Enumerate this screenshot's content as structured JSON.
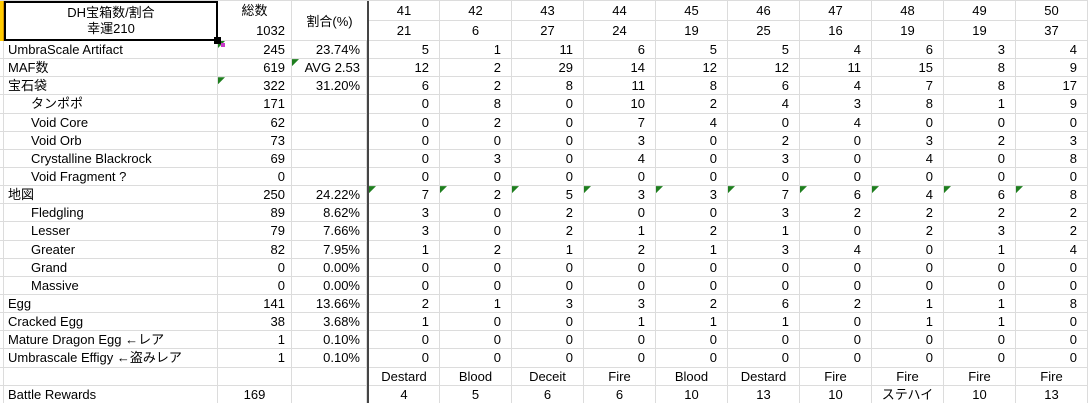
{
  "title": {
    "line1": "DH宝箱数/割合",
    "line2": "幸運210"
  },
  "columns": {
    "total_header": "総数",
    "total_value": "1032",
    "ratio_header": "割合(%)",
    "trial_numbers": [
      "41",
      "42",
      "43",
      "44",
      "45",
      "46",
      "47",
      "48",
      "49",
      "50"
    ],
    "trial_counts": [
      "21",
      "6",
      "27",
      "24",
      "19",
      "25",
      "16",
      "19",
      "19",
      "37"
    ]
  },
  "rows": [
    {
      "label": "UmbraScale Artifact",
      "indent": false,
      "total": "245",
      "ratio": "23.74%",
      "values": [
        "5",
        "1",
        "11",
        "6",
        "5",
        "5",
        "4",
        "6",
        "3",
        "4"
      ],
      "tri_total": true
    },
    {
      "label": "MAF数",
      "indent": false,
      "total": "619",
      "ratio": "AVG 2.53",
      "values": [
        "12",
        "2",
        "29",
        "14",
        "12",
        "12",
        "11",
        "15",
        "8",
        "9"
      ],
      "tri_ratio": true
    },
    {
      "label": "宝石袋",
      "indent": false,
      "total": "322",
      "ratio": "31.20%",
      "values": [
        "6",
        "2",
        "8",
        "11",
        "8",
        "6",
        "4",
        "7",
        "8",
        "17"
      ],
      "tri_total": true
    },
    {
      "label": "タンポポ",
      "indent": true,
      "total": "171",
      "ratio": "",
      "values": [
        "0",
        "8",
        "0",
        "10",
        "2",
        "4",
        "3",
        "8",
        "1",
        "9"
      ]
    },
    {
      "label": "Void Core",
      "indent": true,
      "total": "62",
      "ratio": "",
      "values": [
        "0",
        "2",
        "0",
        "7",
        "4",
        "0",
        "4",
        "0",
        "0",
        "0"
      ]
    },
    {
      "label": "Void Orb",
      "indent": true,
      "total": "73",
      "ratio": "",
      "values": [
        "0",
        "0",
        "0",
        "3",
        "0",
        "2",
        "0",
        "3",
        "2",
        "3"
      ]
    },
    {
      "label": "Crystalline Blackrock",
      "indent": true,
      "total": "69",
      "ratio": "",
      "values": [
        "0",
        "3",
        "0",
        "4",
        "0",
        "3",
        "0",
        "4",
        "0",
        "8"
      ]
    },
    {
      "label": "Void Fragment ?",
      "indent": true,
      "total": "0",
      "ratio": "",
      "values": [
        "0",
        "0",
        "0",
        "0",
        "0",
        "0",
        "0",
        "0",
        "0",
        "0"
      ]
    },
    {
      "label": "地図",
      "indent": false,
      "total": "250",
      "ratio": "24.22%",
      "values": [
        "7",
        "2",
        "5",
        "3",
        "3",
        "7",
        "6",
        "4",
        "6",
        "8"
      ],
      "tri_values": true
    },
    {
      "label": "Fledgling",
      "indent": true,
      "total": "89",
      "ratio": "8.62%",
      "values": [
        "3",
        "0",
        "2",
        "0",
        "0",
        "3",
        "2",
        "2",
        "2",
        "2"
      ]
    },
    {
      "label": "Lesser",
      "indent": true,
      "total": "79",
      "ratio": "7.66%",
      "values": [
        "3",
        "0",
        "2",
        "1",
        "2",
        "1",
        "0",
        "2",
        "3",
        "2"
      ]
    },
    {
      "label": "Greater",
      "indent": true,
      "total": "82",
      "ratio": "7.95%",
      "values": [
        "1",
        "2",
        "1",
        "2",
        "1",
        "3",
        "4",
        "0",
        "1",
        "4"
      ]
    },
    {
      "label": "Grand",
      "indent": true,
      "total": "0",
      "ratio": "0.00%",
      "values": [
        "0",
        "0",
        "0",
        "0",
        "0",
        "0",
        "0",
        "0",
        "0",
        "0"
      ]
    },
    {
      "label": "Massive",
      "indent": true,
      "total": "0",
      "ratio": "0.00%",
      "values": [
        "0",
        "0",
        "0",
        "0",
        "0",
        "0",
        "0",
        "0",
        "0",
        "0"
      ]
    },
    {
      "label": "Egg",
      "indent": false,
      "total": "141",
      "ratio": "13.66%",
      "values": [
        "2",
        "1",
        "3",
        "3",
        "2",
        "6",
        "2",
        "1",
        "1",
        "8"
      ]
    },
    {
      "label": "Cracked Egg",
      "indent": false,
      "total": "38",
      "ratio": "3.68%",
      "values": [
        "1",
        "0",
        "0",
        "1",
        "1",
        "1",
        "0",
        "1",
        "1",
        "0"
      ]
    },
    {
      "label": "Mature Dragon Egg ←レア",
      "indent": false,
      "total": "1",
      "ratio": "0.10%",
      "values": [
        "0",
        "0",
        "0",
        "0",
        "0",
        "0",
        "0",
        "0",
        "0",
        "0"
      ]
    },
    {
      "label": "Umbrascale Effigy ←盗みレア",
      "indent": false,
      "total": "1",
      "ratio": "0.10%",
      "values": [
        "0",
        "0",
        "0",
        "0",
        "0",
        "0",
        "0",
        "0",
        "0",
        "0"
      ]
    },
    {
      "label": "",
      "indent": false,
      "total": "",
      "ratio": "",
      "values": [
        "Destard",
        "Blood",
        "Deceit",
        "Fire",
        "Blood",
        "Destard",
        "Fire",
        "Fire",
        "Fire",
        "Fire"
      ],
      "center": true
    },
    {
      "label": "Battle Rewards",
      "indent": false,
      "total": "169",
      "ratio": "",
      "values": [
        "4",
        "5",
        "6",
        "6",
        "10",
        "13",
        "10",
        "ステハイ",
        "10",
        "13"
      ],
      "center": true
    }
  ],
  "colors": {
    "gridline": "#dcdcdc",
    "pane_divider": "#454545",
    "selection_border": "#000000",
    "left_strip_fill": "#ffcc00",
    "error_triangle": "#1e7e1e",
    "fill_handle": "#000000",
    "fill_handle_dot": "#c738c7"
  }
}
